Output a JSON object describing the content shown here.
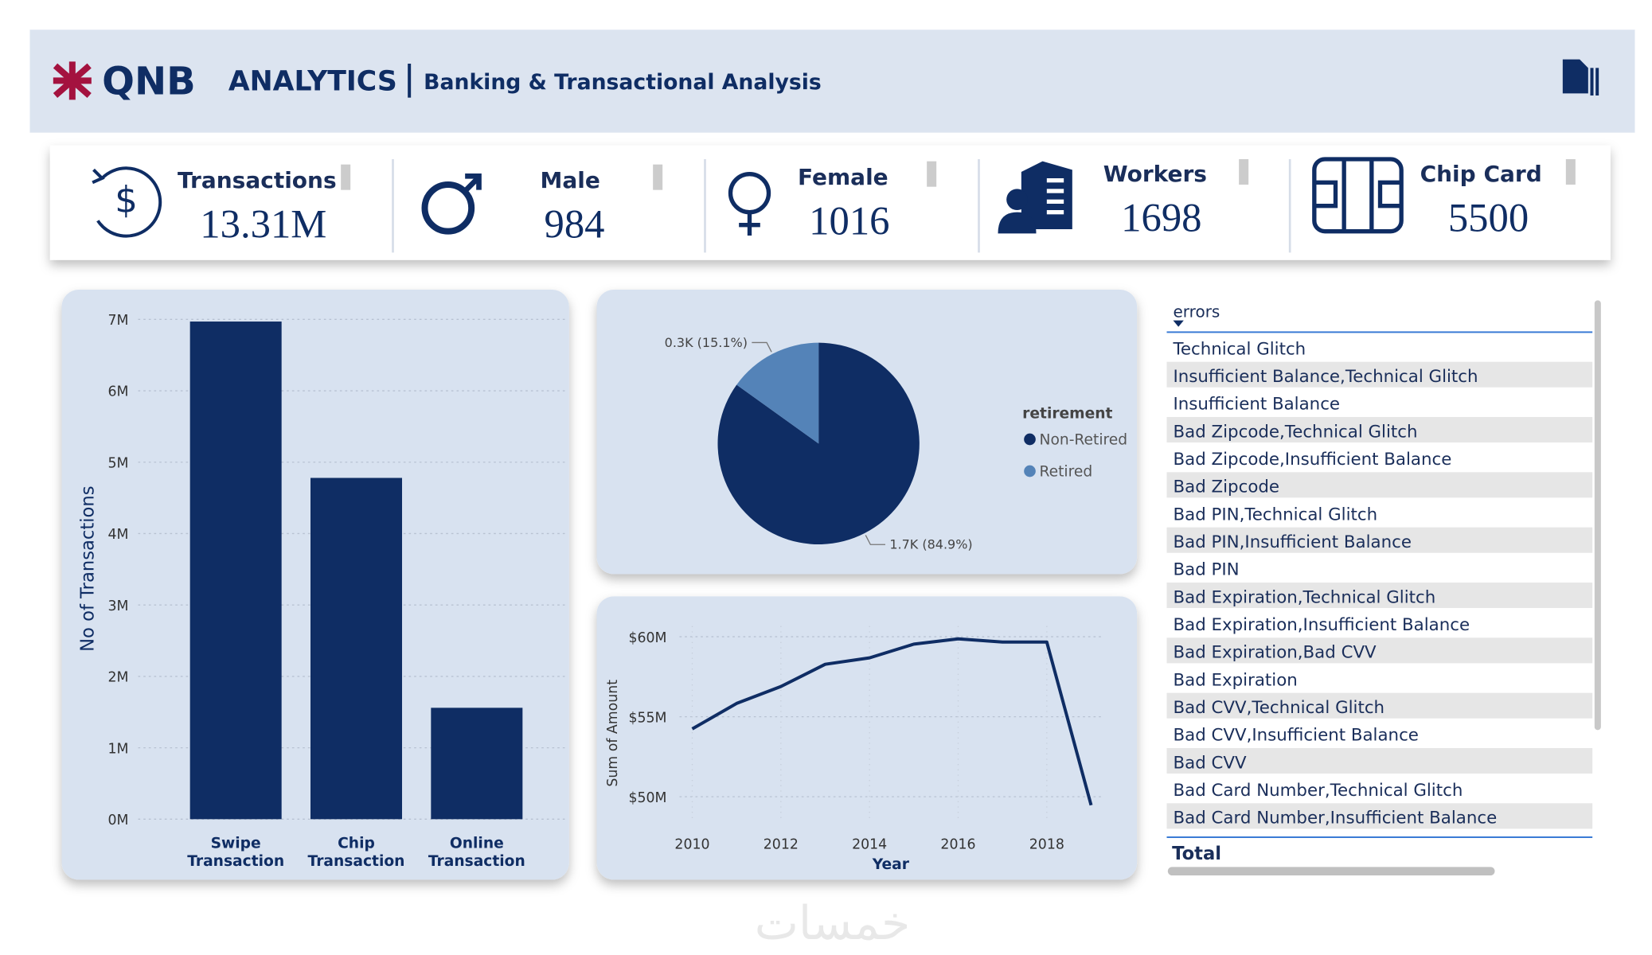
{
  "header": {
    "logo": "QNB",
    "title": "ANALYTICS",
    "subtitle": "Banking & Transactional Analysis"
  },
  "kpis": [
    {
      "label": "Transactions",
      "value": "13.31M"
    },
    {
      "label": "Male",
      "value": 984
    },
    {
      "label": "Female",
      "value": 1016
    },
    {
      "label": "Workers",
      "value": 1698
    },
    {
      "label": "Chip Card",
      "value": 5500
    }
  ],
  "chart_data": [
    {
      "type": "bar",
      "y_label": "No of Transactions",
      "categories": [
        "Swipe Transaction",
        "Chip Transaction",
        "Online Transaction"
      ],
      "values": [
        6970000,
        4780000,
        1560000
      ],
      "color": "#0f2d64",
      "ylim": [
        0,
        7000000
      ],
      "yticks": [
        {
          "value": 0,
          "label": "0M"
        },
        {
          "value": 1000000,
          "label": "1M"
        },
        {
          "value": 2000000,
          "label": "2M"
        },
        {
          "value": 3000000,
          "label": "3M"
        },
        {
          "value": 4000000,
          "label": "4M"
        },
        {
          "value": 5000000,
          "label": "5M"
        },
        {
          "value": 6000000,
          "label": "6M"
        },
        {
          "value": 7000000,
          "label": "7M"
        }
      ],
      "grid": true
    },
    {
      "type": "pie",
      "legend_title": "retirement",
      "categories": [
        "Non-Retired",
        "Retired"
      ],
      "values": [
        1698,
        302
      ],
      "value_labels": [
        "1.7K (84.9%)",
        "0.3K (15.1%)"
      ],
      "colors": [
        "#0f2d64",
        "#5483b8"
      ],
      "legend": "right"
    },
    {
      "type": "line",
      "x_label": "Year",
      "y_label": "Sum of Amount",
      "x": [
        2010,
        2011,
        2012,
        2013,
        2014,
        2015,
        2016,
        2017,
        2018,
        2019
      ],
      "values": [
        54240000,
        55830000,
        56890000,
        58280000,
        58680000,
        59540000,
        59870000,
        59670000,
        59670000,
        49470000
      ],
      "color": "#0f2d64",
      "xlim": [
        2009,
        2020
      ],
      "ylim": [
        48000000,
        61000000
      ],
      "xticks": [
        2010,
        2012,
        2014,
        2016,
        2018
      ],
      "yticks": [
        {
          "value": 50000000,
          "label": "$50M"
        },
        {
          "value": 55000000,
          "label": "$55M"
        },
        {
          "value": 60000000,
          "label": "$60M"
        }
      ],
      "grid": true
    }
  ],
  "errors_table": {
    "header": "errors",
    "rows": [
      "Technical Glitch",
      "Insufficient Balance,Technical Glitch",
      "Insufficient Balance",
      "Bad Zipcode,Technical Glitch",
      "Bad Zipcode,Insufficient Balance",
      "Bad Zipcode",
      "Bad PIN,Technical Glitch",
      "Bad PIN,Insufficient Balance",
      "Bad PIN",
      "Bad Expiration,Technical Glitch",
      "Bad Expiration,Insufficient Balance",
      "Bad Expiration,Bad CVV",
      "Bad Expiration",
      "Bad CVV,Technical Glitch",
      "Bad CVV,Insufficient Balance",
      "Bad CVV",
      "Bad Card Number,Technical Glitch",
      "Bad Card Number,Insufficient Balance"
    ],
    "total": "Total"
  },
  "watermark": "خمسات"
}
